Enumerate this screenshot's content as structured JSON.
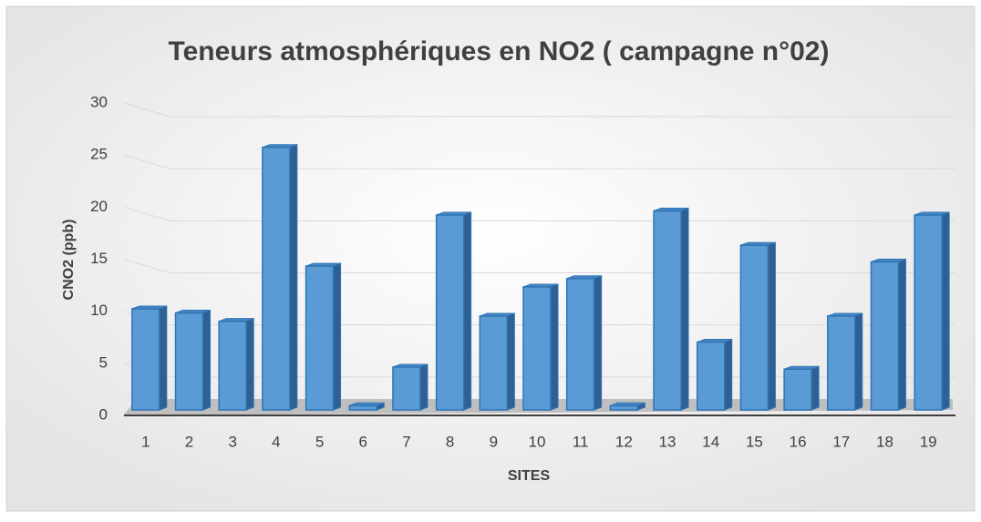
{
  "chart_data": {
    "type": "bar",
    "title": "Teneurs atmosphériques en NO2 ( campagne n°02)",
    "x_label": "SITES",
    "y_label": "CNO2 (ppb)",
    "categories": [
      "1",
      "2",
      "3",
      "4",
      "5",
      "6",
      "7",
      "8",
      "9",
      "10",
      "11",
      "12",
      "13",
      "14",
      "15",
      "16",
      "17",
      "18",
      "19"
    ],
    "values": [
      9.8,
      9.4,
      8.6,
      25.3,
      13.9,
      0.5,
      4.2,
      18.8,
      9.1,
      11.9,
      12.7,
      0.5,
      19.2,
      6.6,
      15.9,
      4.0,
      9.1,
      14.3,
      18.8
    ],
    "color": "#5b9bd5",
    "ylim": [
      0,
      30
    ],
    "yticks": [
      0,
      5,
      10,
      15,
      20,
      25,
      30
    ],
    "grid": true
  }
}
